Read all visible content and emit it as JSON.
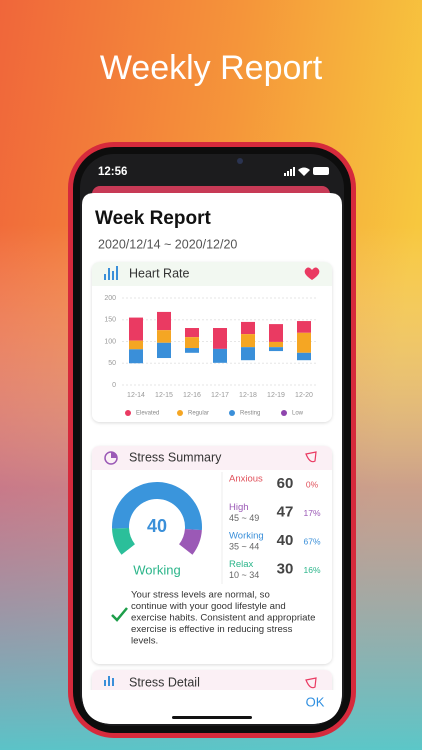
{
  "page_title": "Weekly Report",
  "status_bar": {
    "time": "12:56"
  },
  "report": {
    "title": "Week Report",
    "date_range": "2020/12/14 ~ 2020/12/20"
  },
  "chart_data": {
    "type": "bar",
    "title": "Heart Rate",
    "categories": [
      "12-14",
      "12-15",
      "12-16",
      "12-17",
      "12-18",
      "12-19",
      "12-20"
    ],
    "series": [
      {
        "name": "Elevated",
        "color": "#ea3a62",
        "values": [
          [
            102,
            155
          ],
          [
            126,
            168
          ],
          [
            110,
            131
          ],
          [
            83,
            131
          ],
          [
            117,
            145
          ],
          [
            99,
            140
          ],
          [
            120,
            147
          ]
        ]
      },
      {
        "name": "Regular",
        "color": "#f5a623",
        "values": [
          [
            82,
            102
          ],
          [
            97,
            126
          ],
          [
            85,
            110
          ],
          null,
          [
            87,
            117
          ],
          [
            87,
            99
          ],
          [
            74,
            120
          ]
        ]
      },
      {
        "name": "Resting",
        "color": "#3a8fd9",
        "values": [
          [
            50,
            82
          ],
          [
            62,
            97
          ],
          [
            74,
            85
          ],
          [
            51,
            83
          ],
          [
            57,
            87
          ],
          [
            78,
            87
          ],
          [
            57,
            74
          ]
        ]
      },
      {
        "name": "Low",
        "color": "#8e44ad",
        "values": [
          null,
          null,
          null,
          null,
          null,
          null,
          null
        ]
      }
    ],
    "ylim": [
      0,
      200
    ],
    "yticks": [
      0,
      50,
      100,
      150,
      200
    ],
    "grid": true
  },
  "stress_summary": {
    "title": "Stress Summary",
    "gauge_value": "40",
    "gauge_label": "Working",
    "levels": [
      {
        "name": "Anxious",
        "value": "60",
        "share": "0%"
      },
      {
        "name": "High",
        "range": "45 ~ 49",
        "value": "47",
        "share": "17%"
      },
      {
        "name": "Working",
        "range": "35 ~ 44",
        "value": "40",
        "share": "67%"
      },
      {
        "name": "Relax",
        "range": "10 ~ 34",
        "value": "30",
        "share": "16%"
      }
    ],
    "message": [
      "Your stress levels are normal, so",
      "continue with your good lifestyle and",
      "exercise habits. Consistent and appropriate",
      "exercise is effective in reducing stress",
      "levels."
    ]
  },
  "stress_detail": {
    "title": "Stress Detail"
  },
  "ok_button": "OK"
}
